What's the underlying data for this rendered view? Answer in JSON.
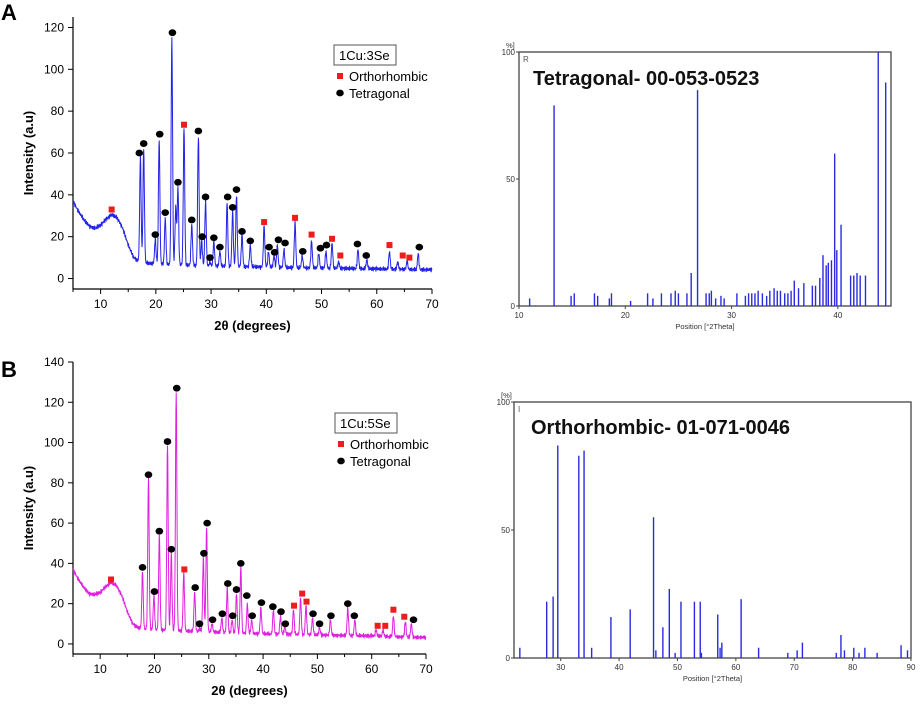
{
  "panel_labels": {
    "a": "A",
    "b": "B"
  },
  "colors": {
    "xrd_a": "#2323e8",
    "xrd_b": "#e020e0",
    "ref": "#2a2ae0",
    "ortho": "#ee1c1c",
    "tetra": "#000000",
    "axis": "#000000"
  },
  "chart_data": [
    {
      "id": "xrd-a",
      "type": "line",
      "legend": {
        "title": "1Cu:3Se",
        "items": [
          "Orthorhombic",
          "Tetragonal"
        ],
        "placement": "top-right"
      },
      "xlabel": "2θ (degrees)",
      "ylabel": "Intensity (a.u)",
      "xlim": [
        5,
        70
      ],
      "ylim": [
        -5,
        125
      ],
      "xticks": [
        10,
        20,
        30,
        40,
        50,
        60,
        70
      ],
      "yticks": [
        0,
        20,
        40,
        60,
        80,
        100,
        120
      ],
      "baseline": [
        [
          5,
          37
        ],
        [
          6,
          32
        ],
        [
          7,
          28
        ],
        [
          8,
          25
        ],
        [
          9,
          24
        ],
        [
          10,
          25.5
        ],
        [
          11,
          28.5
        ],
        [
          12,
          30.5
        ],
        [
          13,
          29
        ],
        [
          14,
          24
        ],
        [
          15,
          16
        ],
        [
          16,
          10
        ],
        [
          17,
          8
        ],
        [
          18,
          7.5
        ],
        [
          20,
          7
        ],
        [
          25,
          6.5
        ],
        [
          30,
          6
        ],
        [
          35,
          5.8
        ],
        [
          40,
          5.5
        ],
        [
          45,
          5.2
        ],
        [
          50,
          5
        ],
        [
          55,
          4.8
        ],
        [
          60,
          4.6
        ],
        [
          65,
          4.4
        ],
        [
          70,
          4.2
        ]
      ],
      "peaks": [
        [
          17.2,
          58
        ],
        [
          17.8,
          62
        ],
        [
          19.9,
          19
        ],
        [
          20.6,
          67
        ],
        [
          21.7,
          29
        ],
        [
          22.9,
          115
        ],
        [
          23.6,
          34
        ],
        [
          24.0,
          44
        ],
        [
          25.1,
          72
        ],
        [
          26.5,
          26
        ],
        [
          27.7,
          68
        ],
        [
          28.3,
          18
        ],
        [
          29.0,
          37
        ],
        [
          29.8,
          8
        ],
        [
          30.5,
          18
        ],
        [
          31.6,
          13
        ],
        [
          32.9,
          36
        ],
        [
          33.9,
          32
        ],
        [
          34.6,
          40
        ],
        [
          35.6,
          21
        ],
        [
          37.1,
          16
        ],
        [
          39.6,
          25
        ],
        [
          40.4,
          13
        ],
        [
          41.4,
          11
        ],
        [
          42.0,
          16
        ],
        [
          43.2,
          14
        ],
        [
          45.2,
          27
        ],
        [
          46.5,
          11
        ],
        [
          48.2,
          18
        ],
        [
          49.5,
          12
        ],
        [
          50.8,
          13
        ],
        [
          51.9,
          17
        ],
        [
          53.1,
          8
        ],
        [
          56.6,
          14
        ],
        [
          58.2,
          9
        ],
        [
          62.3,
          13
        ],
        [
          63.8,
          8
        ],
        [
          65.5,
          8
        ],
        [
          67.5,
          12
        ]
      ],
      "ortho": [
        [
          12,
          33
        ],
        [
          25.1,
          73.5
        ],
        [
          39.6,
          27
        ],
        [
          45.2,
          29
        ],
        [
          48.2,
          21
        ],
        [
          51.9,
          19
        ],
        [
          53.4,
          11
        ],
        [
          62.3,
          16
        ],
        [
          64.7,
          11
        ],
        [
          65.9,
          10
        ]
      ],
      "tetra": [
        [
          17.0,
          60
        ],
        [
          17.8,
          64.5
        ],
        [
          19.9,
          21
        ],
        [
          20.7,
          69
        ],
        [
          21.7,
          31.5
        ],
        [
          23.0,
          117.5
        ],
        [
          24.0,
          46
        ],
        [
          26.5,
          28
        ],
        [
          27.7,
          70.5
        ],
        [
          28.4,
          20
        ],
        [
          29.0,
          39
        ],
        [
          29.8,
          10
        ],
        [
          30.5,
          19.5
        ],
        [
          31.6,
          15
        ],
        [
          33.0,
          39
        ],
        [
          33.9,
          34
        ],
        [
          34.6,
          42.5
        ],
        [
          35.6,
          22.5
        ],
        [
          37.1,
          18
        ],
        [
          40.5,
          15
        ],
        [
          41.5,
          12.5
        ],
        [
          42.2,
          18.5
        ],
        [
          43.4,
          17
        ],
        [
          46.6,
          13
        ],
        [
          49.8,
          14.5
        ],
        [
          50.9,
          16
        ],
        [
          56.5,
          16.5
        ],
        [
          58.1,
          11
        ],
        [
          67.7,
          15
        ]
      ]
    },
    {
      "id": "ref-a",
      "type": "bar",
      "title": "Tetragonal- 00-053-0523",
      "xlabel": "Position [°2Theta]",
      "ylabel": "%]",
      "corner_label": "R",
      "xlim": [
        10,
        45
      ],
      "ylim": [
        0,
        100
      ],
      "xticks": [
        10,
        20,
        30,
        40
      ],
      "yticks": [
        0,
        50,
        100
      ],
      "x": [
        11,
        13.3,
        14.9,
        15.2,
        17.1,
        17.4,
        18.5,
        18.7,
        20.5,
        22.1,
        22.6,
        23.4,
        24.3,
        24.7,
        25.0,
        25.8,
        26.2,
        26.8,
        27.6,
        27.9,
        28.1,
        28.5,
        29.0,
        29.3,
        30.5,
        31.3,
        31.6,
        31.9,
        32.2,
        32.5,
        32.9,
        33.3,
        33.6,
        34.0,
        34.3,
        34.6,
        35.0,
        35.3,
        35.6,
        35.9,
        36.3,
        36.8,
        37.6,
        37.9,
        38.3,
        38.6,
        38.9,
        39.1,
        39.4,
        39.7,
        39.9,
        40.3,
        41.2,
        41.5,
        41.8,
        42.1,
        42.6,
        43.8,
        44.5
      ],
      "values": [
        3,
        79,
        4,
        5,
        5,
        4,
        3,
        5,
        2,
        5,
        3,
        5,
        5,
        6,
        5,
        5,
        13,
        85,
        5,
        5,
        6,
        3,
        4,
        3,
        5,
        4,
        5,
        5,
        5,
        6,
        5,
        4,
        6,
        7,
        6,
        6,
        5,
        5,
        6,
        10,
        7,
        9,
        8,
        8,
        11,
        20,
        16,
        17,
        18,
        60,
        22,
        32,
        12,
        12,
        13,
        12,
        12,
        100,
        88
      ]
    },
    {
      "id": "xrd-b",
      "type": "line",
      "legend": {
        "title": "1Cu:5Se",
        "items": [
          "Orthorhombic",
          "Tetragonal"
        ],
        "placement": "top-right"
      },
      "xlabel": "2θ (degrees)",
      "ylabel": "Intensity (a.u)",
      "xlim": [
        5,
        70
      ],
      "ylim": [
        -5,
        140
      ],
      "xticks": [
        10,
        20,
        30,
        40,
        50,
        60,
        70
      ],
      "yticks": [
        0,
        20,
        40,
        60,
        80,
        100,
        120,
        140
      ],
      "baseline": [
        [
          5,
          37
        ],
        [
          6,
          32
        ],
        [
          7,
          28
        ],
        [
          8,
          25
        ],
        [
          9,
          24.5
        ],
        [
          10,
          25.5
        ],
        [
          11,
          28.5
        ],
        [
          12,
          30.5
        ],
        [
          13,
          29
        ],
        [
          14,
          24
        ],
        [
          15,
          16
        ],
        [
          16,
          10
        ],
        [
          17,
          8
        ],
        [
          18,
          7.5
        ],
        [
          20,
          7
        ],
        [
          25,
          6.5
        ],
        [
          30,
          6
        ],
        [
          35,
          5.5
        ],
        [
          40,
          5
        ],
        [
          45,
          4.8
        ],
        [
          50,
          4.5
        ],
        [
          55,
          4.2
        ],
        [
          60,
          4
        ],
        [
          65,
          3.5
        ],
        [
          70,
          3.2
        ]
      ],
      "peaks": [
        [
          17.8,
          36
        ],
        [
          18.9,
          82
        ],
        [
          19.9,
          24
        ],
        [
          20.9,
          54
        ],
        [
          22.4,
          99
        ],
        [
          23.1,
          45
        ],
        [
          24.0,
          125
        ],
        [
          25.4,
          35
        ],
        [
          27.4,
          26
        ],
        [
          28.3,
          8
        ],
        [
          29.0,
          43
        ],
        [
          29.6,
          58
        ],
        [
          30.6,
          10
        ],
        [
          32.4,
          13
        ],
        [
          33.4,
          28
        ],
        [
          34.3,
          12
        ],
        [
          35.1,
          25
        ],
        [
          35.9,
          38
        ],
        [
          37.1,
          20
        ],
        [
          37.9,
          12
        ],
        [
          39.6,
          18
        ],
        [
          41.9,
          17
        ],
        [
          43.2,
          14
        ],
        [
          44.0,
          9
        ],
        [
          45.6,
          17
        ],
        [
          46.9,
          23
        ],
        [
          47.9,
          19
        ],
        [
          49.1,
          13
        ],
        [
          50.4,
          8
        ],
        [
          52.4,
          12
        ],
        [
          55.6,
          18
        ],
        [
          56.9,
          12
        ],
        [
          60.8,
          7
        ],
        [
          62.1,
          7
        ],
        [
          64.0,
          14
        ],
        [
          66.2,
          11
        ],
        [
          67.3,
          10
        ]
      ],
      "ortho": [
        [
          12,
          32
        ],
        [
          25.5,
          37
        ],
        [
          45.7,
          19
        ],
        [
          47.2,
          25
        ],
        [
          48.0,
          21
        ],
        [
          61.1,
          9
        ],
        [
          62.5,
          9
        ],
        [
          64.0,
          17
        ],
        [
          66.0,
          13.5
        ]
      ],
      "tetra": [
        [
          17.8,
          38
        ],
        [
          18.9,
          84
        ],
        [
          20.0,
          26
        ],
        [
          20.9,
          56
        ],
        [
          22.4,
          100.5
        ],
        [
          23.1,
          47
        ],
        [
          24.1,
          127
        ],
        [
          27.5,
          28
        ],
        [
          28.3,
          10
        ],
        [
          29.1,
          45
        ],
        [
          29.7,
          60
        ],
        [
          30.7,
          12
        ],
        [
          32.5,
          15
        ],
        [
          33.5,
          30
        ],
        [
          34.4,
          14
        ],
        [
          35.1,
          27
        ],
        [
          35.9,
          40
        ],
        [
          37.0,
          24
        ],
        [
          38.0,
          14
        ],
        [
          39.7,
          20.5
        ],
        [
          41.8,
          18.5
        ],
        [
          43.3,
          16
        ],
        [
          44.1,
          10
        ],
        [
          49.2,
          15
        ],
        [
          50.4,
          10
        ],
        [
          52.5,
          14
        ],
        [
          55.6,
          20
        ],
        [
          56.8,
          14
        ],
        [
          67.7,
          12
        ]
      ]
    },
    {
      "id": "ref-b",
      "type": "bar",
      "title": "Orthorhombic- 01-071-0046",
      "xlabel": "Position [°2Theta]",
      "ylabel": "[%]",
      "corner_label": "I",
      "xlim": [
        22,
        90
      ],
      "ylim": [
        0,
        100
      ],
      "xticks": [
        30,
        40,
        50,
        60,
        70,
        80,
        90
      ],
      "yticks": [
        0,
        50,
        100
      ],
      "x": [
        23,
        27.6,
        28.7,
        29.5,
        33.1,
        34.0,
        35.3,
        38.6,
        41.9,
        45.9,
        46.3,
        47.5,
        48.6,
        49.6,
        50.6,
        52.9,
        53.9,
        54.1,
        56.9,
        57.3,
        57.6,
        60.9,
        63.9,
        68.9,
        70.5,
        71.4,
        77.2,
        78.0,
        78.6,
        80.2,
        81.1,
        82.1,
        84.2,
        88.3,
        89.4
      ],
      "values": [
        4,
        22,
        24,
        83,
        79,
        81,
        4,
        16,
        19,
        55,
        3,
        12,
        27,
        2,
        22,
        22,
        22,
        2,
        17,
        4,
        6,
        23,
        4,
        2,
        3,
        6,
        2,
        9,
        3,
        4,
        2,
        4,
        2,
        5,
        3
      ]
    }
  ]
}
